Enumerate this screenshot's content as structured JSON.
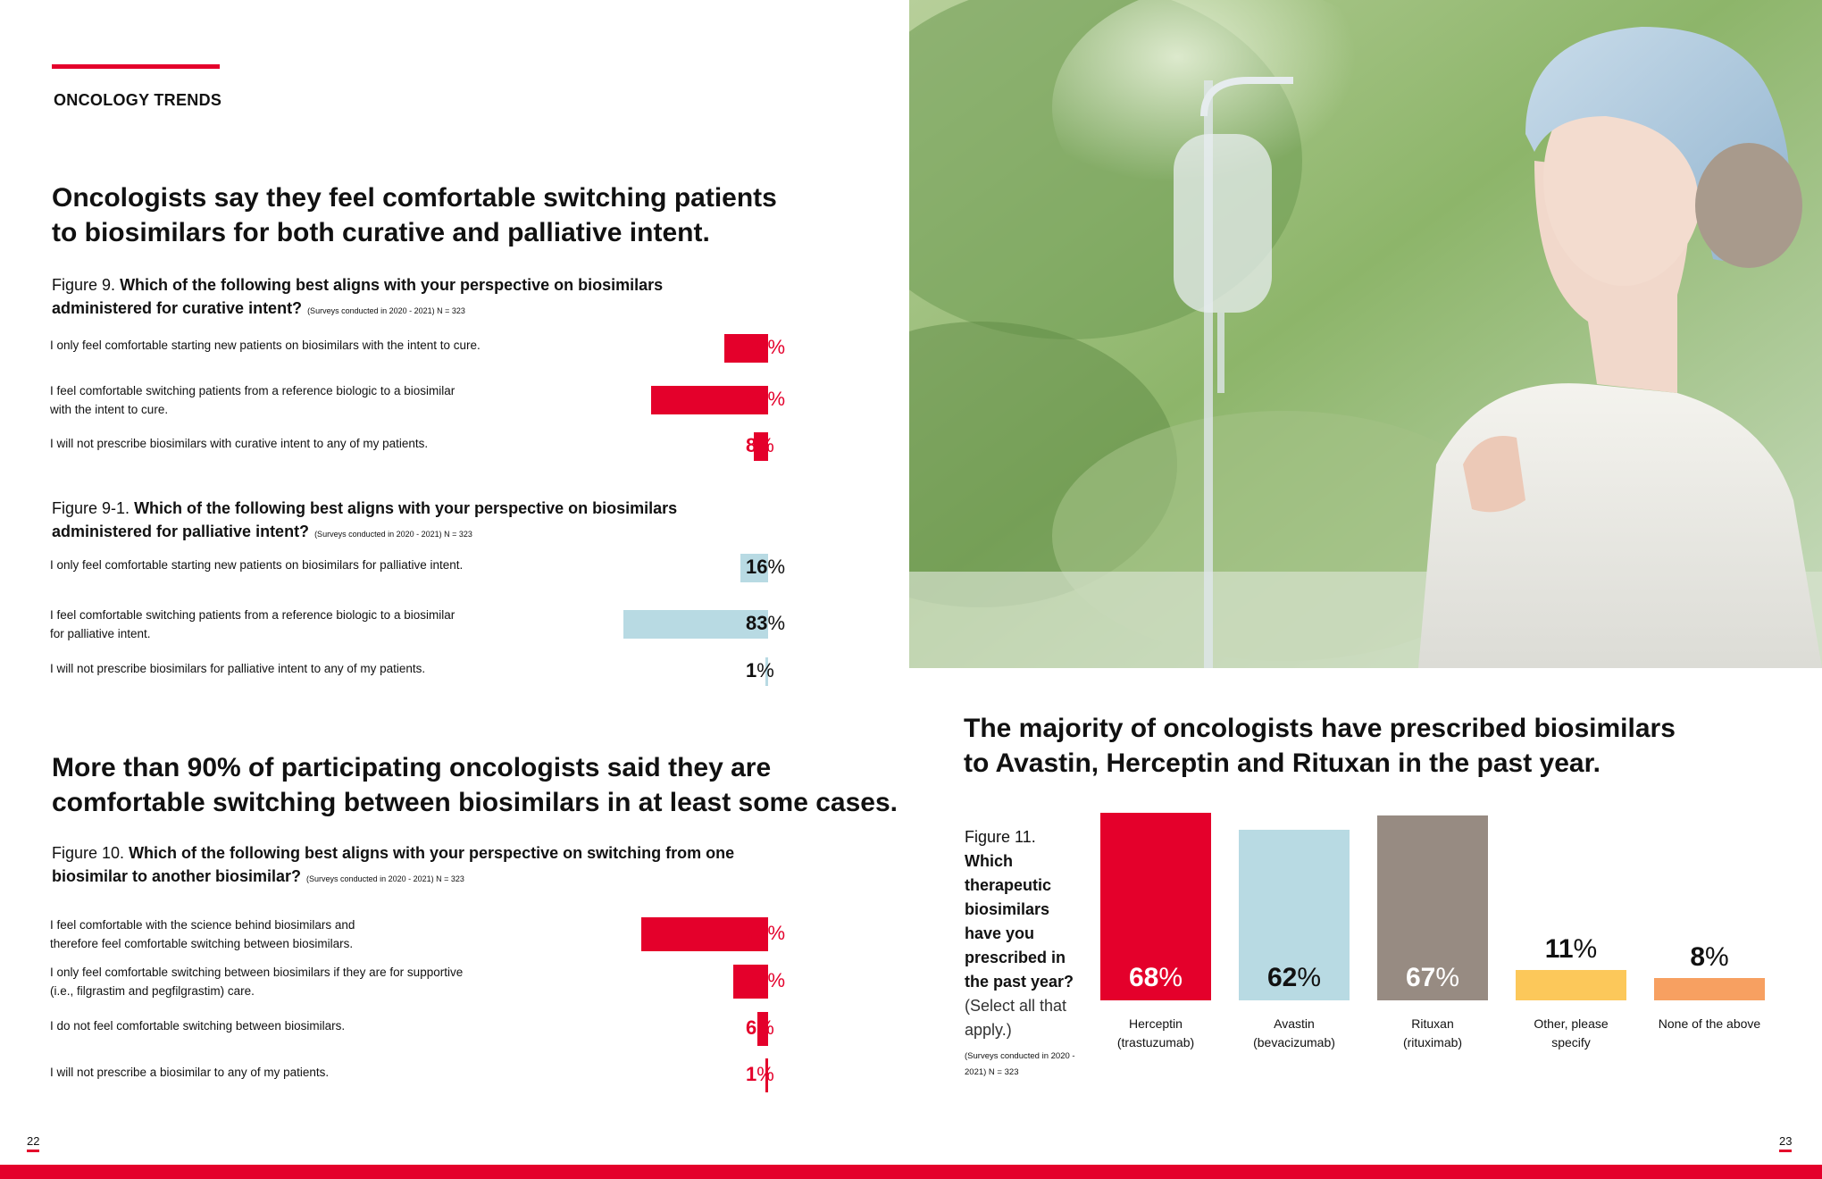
{
  "header": {
    "section": "ONCOLOGY TRENDS"
  },
  "left": {
    "headline1": [
      "Oncologists say they feel comfortable switching patients",
      "to biosimilars for both curative and palliative intent."
    ],
    "figure9": {
      "prefix": "Figure 9.",
      "question": [
        "Which of the following best aligns with your perspective on biosimilars",
        "administered for curative intent?"
      ],
      "note": "(Surveys conducted in 2020 - 2021) N = 323",
      "rows": [
        {
          "label": [
            "I only feel comfortable starting new patients on biosimilars with the intent to cure."
          ],
          "value": 25
        },
        {
          "label": [
            "I feel comfortable switching patients from a reference biologic to a biosimilar",
            "with the intent to cure."
          ],
          "value": 67
        },
        {
          "label": [
            "I will not prescribe biosimilars with curative intent to any of my patients."
          ],
          "value": 8
        }
      ]
    },
    "figure9_1": {
      "prefix": "Figure 9-1.",
      "question": [
        "Which of the following best aligns with your perspective on biosimilars",
        "administered for palliative intent?"
      ],
      "note": "(Surveys conducted in 2020 - 2021) N = 323",
      "rows": [
        {
          "label": [
            "I only feel comfortable starting new patients on biosimilars for palliative intent."
          ],
          "value": 16
        },
        {
          "label": [
            "I feel comfortable switching patients from a reference biologic to a biosimilar",
            "for palliative intent."
          ],
          "value": 83
        },
        {
          "label": [
            "I will not prescribe biosimilars for palliative intent to any of my patients."
          ],
          "value": 1
        }
      ]
    },
    "headline2": [
      "More than 90% of participating oncologists said they are",
      "comfortable switching between biosimilars in at least some cases."
    ],
    "figure10": {
      "prefix": "Figure 10.",
      "question": [
        "Which of the following best aligns with your perspective on switching from one",
        "biosimilar to another biosimilar?"
      ],
      "note": "(Surveys conducted in 2020 - 2021) N = 323",
      "rows": [
        {
          "label": [
            "I feel comfortable with the science behind biosimilars and",
            "therefore feel comfortable switching between biosimilars."
          ],
          "value": 73
        },
        {
          "label": [
            "I only feel comfortable switching between biosimilars if they are for supportive",
            "(i.e., filgrastim and pegfilgrastim) care."
          ],
          "value": 20
        },
        {
          "label": [
            "I do not feel comfortable switching between biosimilars."
          ],
          "value": 6
        },
        {
          "label": [
            "I will not prescribe a biosimilar to any of my patients."
          ],
          "value": 1
        }
      ]
    },
    "page_number": "22"
  },
  "right": {
    "headline": [
      "The majority of oncologists have prescribed biosimilars",
      "to Avastin, Herceptin and Rituxan in the past year."
    ],
    "figure11": {
      "prefix": "Figure 11.",
      "question": "Which therapeutic biosimilars have you prescribed in the past year?",
      "question_suffix": "(Select all that apply.)",
      "note": "(Surveys conducted in 2020 - 2021) N = 323"
    },
    "page_number": "23"
  },
  "colors": {
    "accent_red": "#e4002b",
    "light_blue": "#b8dae3",
    "taupe": "#978b82",
    "yellow": "#fcc85a",
    "orange": "#f7a061"
  },
  "chart_data": [
    {
      "type": "bar",
      "orientation": "horizontal",
      "title": "Figure 9. Which of the following best aligns with your perspective on biosimilars administered for curative intent?",
      "categories": [
        "I only feel comfortable starting new patients on biosimilars with the intent to cure.",
        "I feel comfortable switching patients from a reference biologic to a biosimilar with the intent to cure.",
        "I will not prescribe biosimilars with curative intent to any of my patients."
      ],
      "values": [
        25,
        67,
        8
      ],
      "unit": "%"
    },
    {
      "type": "bar",
      "orientation": "horizontal",
      "title": "Figure 9-1. Which of the following best aligns with your perspective on biosimilars administered for palliative intent?",
      "categories": [
        "I only feel comfortable starting new patients on biosimilars for palliative intent.",
        "I feel comfortable switching patients from a reference biologic to a biosimilar for palliative intent.",
        "I will not prescribe biosimilars for palliative intent to any of my patients."
      ],
      "values": [
        16,
        83,
        1
      ],
      "unit": "%"
    },
    {
      "type": "bar",
      "orientation": "horizontal",
      "title": "Figure 10. Which of the following best aligns with your perspective on switching from one biosimilar to another biosimilar?",
      "categories": [
        "I feel comfortable with the science behind biosimilars and therefore feel comfortable switching between biosimilars.",
        "I only feel comfortable switching between biosimilars if they are for supportive (i.e., filgrastim and pegfilgrastim) care.",
        "I do not feel comfortable switching between biosimilars.",
        "I will not prescribe a biosimilar to any of my patients."
      ],
      "values": [
        73,
        20,
        6,
        1
      ],
      "unit": "%"
    },
    {
      "type": "bar",
      "orientation": "vertical",
      "title": "Figure 11. Which therapeutic biosimilars have you prescribed in the past year? (Select all that apply.)",
      "categories": [
        [
          "Herceptin",
          "(trastuzumab)"
        ],
        [
          "Avastin",
          "(bevacizumab)"
        ],
        [
          "Rituxan",
          "(rituximab)"
        ],
        [
          "Other, please",
          "specify"
        ],
        [
          "None of the above"
        ]
      ],
      "values": [
        68,
        62,
        67,
        11,
        8
      ],
      "unit": "%"
    }
  ]
}
